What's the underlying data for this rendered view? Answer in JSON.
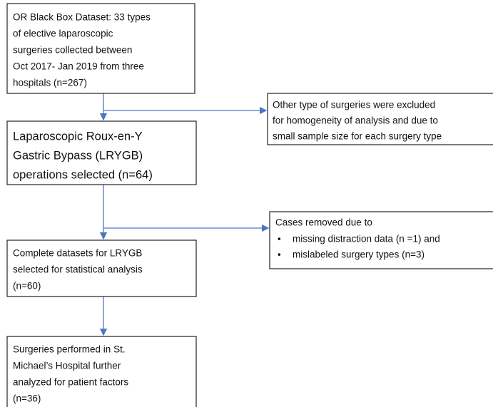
{
  "nodes": [
    {
      "lines": [
        "OR Black Box Dataset: 33 types",
        "of elective laparoscopic",
        "surgeries collected between",
        "Oct 2017- Jan 2019 from three",
        "hospitals (n=267)"
      ]
    },
    {
      "lines": [
        "Laparoscopic Roux-en-Y",
        "Gastric Bypass (LRYGB)",
        "operations selected (n=64)"
      ]
    },
    {
      "lines": [
        "Complete datasets for LRYGB",
        "selected for statistical analysis",
        "(n=60)"
      ]
    },
    {
      "lines": [
        "Surgeries performed in St.",
        "Michael’s Hospital further",
        "analyzed for patient factors",
        "(n=36)"
      ]
    }
  ],
  "exclusions": [
    {
      "lines": [
        "Other type of surgeries were excluded",
        "for homogeneity of analysis and due to",
        "small sample size for each surgery type"
      ]
    },
    {
      "heading": "Cases removed due to",
      "bullet": "•",
      "items": [
        "missing distraction data (n =1) and",
        "mislabeled surgery types (n=3)"
      ]
    }
  ]
}
